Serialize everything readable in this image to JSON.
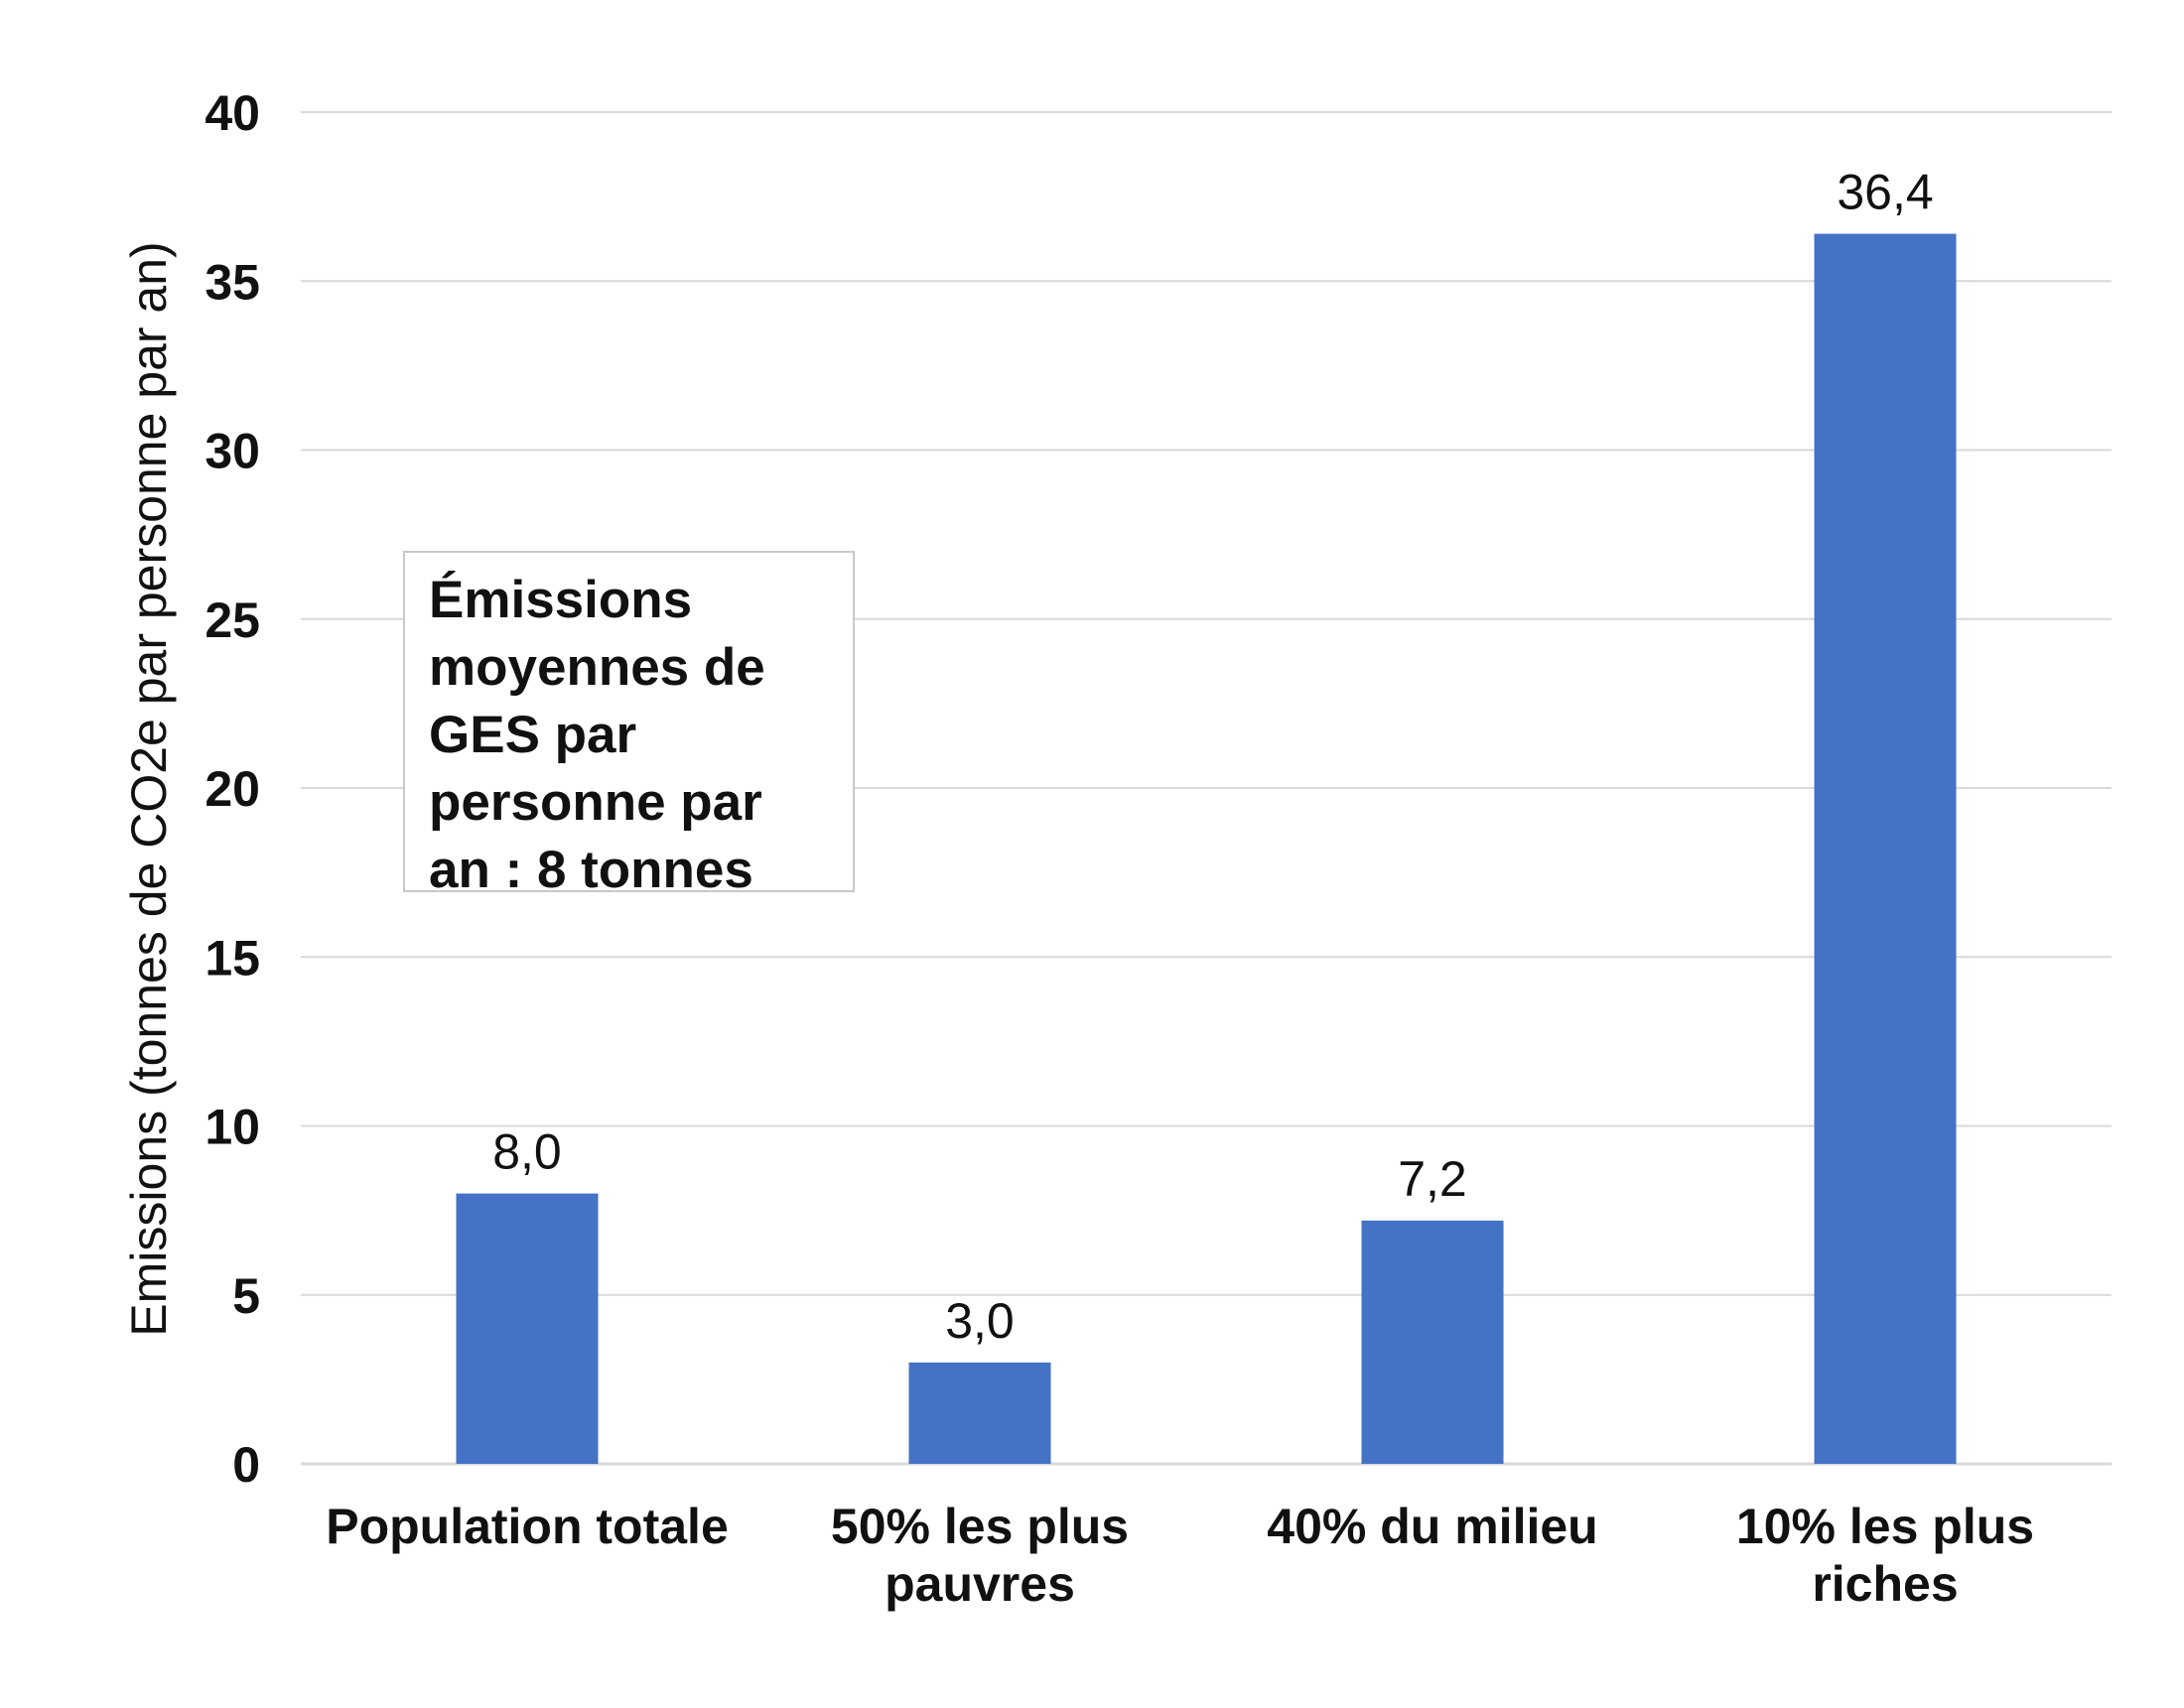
{
  "chart_data": {
    "type": "bar",
    "title": "",
    "xlabel": "",
    "ylabel": "Emissions (tonnes de CO2e par personne par an)",
    "ylim": [
      0,
      40
    ],
    "yticks": [
      0,
      5,
      10,
      15,
      20,
      25,
      30,
      35,
      40
    ],
    "grid": true,
    "bar_color": "#4472c4",
    "categories": [
      [
        "Population totale"
      ],
      [
        "50% les plus",
        "pauvres"
      ],
      [
        "40% du milieu"
      ],
      [
        "10% les plus",
        "riches"
      ]
    ],
    "values": [
      8.0,
      3.0,
      7.2,
      36.4
    ],
    "data_labels": [
      "8,0",
      "3,0",
      "7,2",
      "36,4"
    ],
    "annotation": {
      "lines": [
        "Émissions",
        "moyennes de",
        "GES par",
        "personne par",
        "an : 8 tonnes"
      ]
    }
  }
}
